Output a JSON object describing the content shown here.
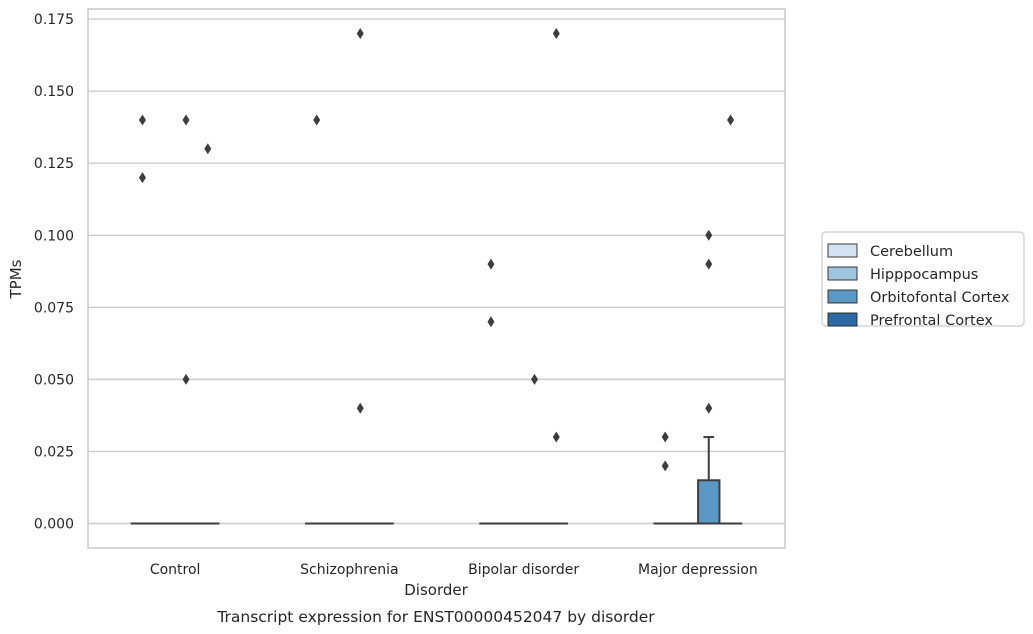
{
  "chart_data": {
    "type": "box",
    "title": "",
    "caption": "Transcript expression for ENST00000452047 by disorder",
    "xlabel": "Disorder",
    "ylabel": "TPMs",
    "ylim": [
      -0.0085,
      0.1785
    ],
    "yticks": [
      "0.000",
      "0.025",
      "0.050",
      "0.075",
      "0.100",
      "0.125",
      "0.150",
      "0.175"
    ],
    "grid": "horizontal",
    "legend_position": "right",
    "categories": [
      "Control",
      "Schizophrenia",
      "Bipolar disorder",
      "Major depression"
    ],
    "series": [
      {
        "name": "Cerebellum",
        "color": "#d4e3f2"
      },
      {
        "name": "Hipppocampus",
        "color": "#9fc4df"
      },
      {
        "name": "Orbitofontal Cortex",
        "color": "#5a98c5"
      },
      {
        "name": "Prefrontal Cortex",
        "color": "#2c6aa6"
      }
    ],
    "boxes": [
      {
        "category": 0,
        "series": 0,
        "q1": 0,
        "median": 0,
        "q3": 0,
        "whisker_low": 0,
        "whisker_high": 0,
        "outliers": [
          0.12,
          0.14
        ]
      },
      {
        "category": 0,
        "series": 1,
        "q1": 0,
        "median": 0,
        "q3": 0,
        "whisker_low": 0,
        "whisker_high": 0,
        "outliers": []
      },
      {
        "category": 0,
        "series": 2,
        "q1": 0,
        "median": 0,
        "q3": 0,
        "whisker_low": 0,
        "whisker_high": 0,
        "outliers": [
          0.05,
          0.14
        ]
      },
      {
        "category": 0,
        "series": 3,
        "q1": 0,
        "median": 0,
        "q3": 0,
        "whisker_low": 0,
        "whisker_high": 0,
        "outliers": [
          0.13
        ]
      },
      {
        "category": 1,
        "series": 0,
        "q1": 0,
        "median": 0,
        "q3": 0,
        "whisker_low": 0,
        "whisker_high": 0,
        "outliers": [
          0.14
        ]
      },
      {
        "category": 1,
        "series": 1,
        "q1": 0,
        "median": 0,
        "q3": 0,
        "whisker_low": 0,
        "whisker_high": 0,
        "outliers": []
      },
      {
        "category": 1,
        "series": 2,
        "q1": 0,
        "median": 0,
        "q3": 0,
        "whisker_low": 0,
        "whisker_high": 0,
        "outliers": [
          0.04,
          0.17
        ]
      },
      {
        "category": 1,
        "series": 3,
        "q1": 0,
        "median": 0,
        "q3": 0,
        "whisker_low": 0,
        "whisker_high": 0,
        "outliers": []
      },
      {
        "category": 2,
        "series": 0,
        "q1": 0,
        "median": 0,
        "q3": 0,
        "whisker_low": 0,
        "whisker_high": 0,
        "outliers": [
          0.07,
          0.09
        ]
      },
      {
        "category": 2,
        "series": 1,
        "q1": 0,
        "median": 0,
        "q3": 0,
        "whisker_low": 0,
        "whisker_high": 0,
        "outliers": []
      },
      {
        "category": 2,
        "series": 2,
        "q1": 0,
        "median": 0,
        "q3": 0,
        "whisker_low": 0,
        "whisker_high": 0,
        "outliers": [
          0.05
        ]
      },
      {
        "category": 2,
        "series": 3,
        "q1": 0,
        "median": 0,
        "q3": 0,
        "whisker_low": 0,
        "whisker_high": 0,
        "outliers": [
          0.03,
          0.17
        ]
      },
      {
        "category": 3,
        "series": 0,
        "q1": 0,
        "median": 0,
        "q3": 0,
        "whisker_low": 0,
        "whisker_high": 0,
        "outliers": [
          0.02,
          0.03
        ]
      },
      {
        "category": 3,
        "series": 1,
        "q1": 0,
        "median": 0,
        "q3": 0,
        "whisker_low": 0,
        "whisker_high": 0,
        "outliers": []
      },
      {
        "category": 3,
        "series": 2,
        "q1": 0,
        "median": 0,
        "q3": 0.015,
        "whisker_low": 0,
        "whisker_high": 0.03,
        "outliers": [
          0.04,
          0.09,
          0.1
        ]
      },
      {
        "category": 3,
        "series": 3,
        "q1": 0,
        "median": 0,
        "q3": 0,
        "whisker_low": 0,
        "whisker_high": 0,
        "outliers": [
          0.14
        ]
      }
    ]
  }
}
